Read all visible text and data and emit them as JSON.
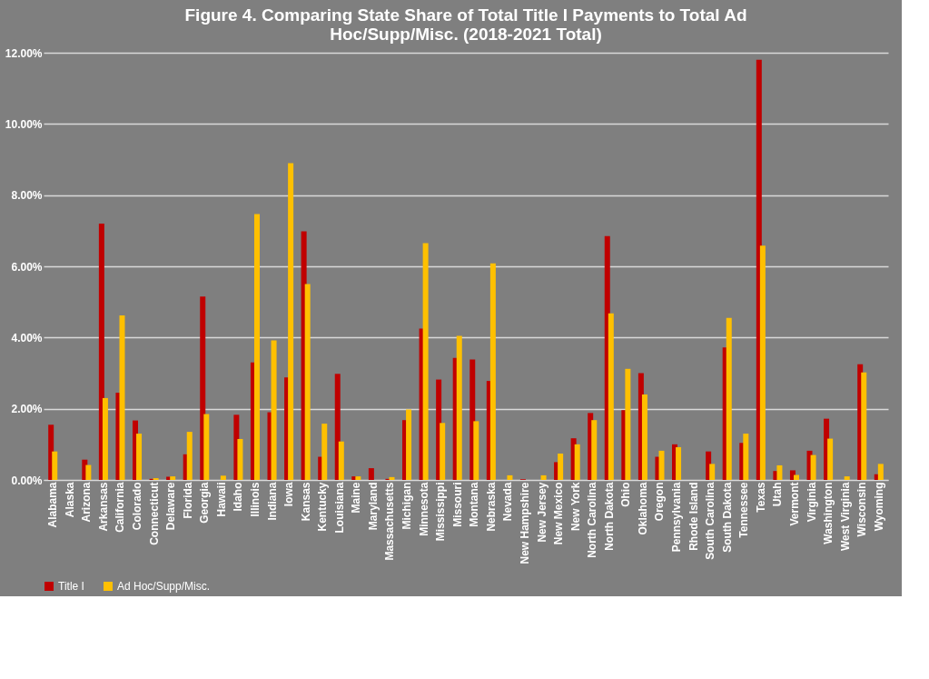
{
  "chart_data": {
    "type": "bar",
    "title": "Figure 4. Comparing State Share of Total Title I Payments to Total Ad Hoc/Supp/Misc. (2018-2021 Total)",
    "categories": [
      "Alabama",
      "Alaska",
      "Arizona",
      "Arkansas",
      "California",
      "Colorado",
      "Connecticut",
      "Delaware",
      "Florida",
      "Georgia",
      "Hawaii",
      "Idaho",
      "Illinois",
      "Indiana",
      "Iowa",
      "Kansas",
      "Kentucky",
      "Louisiana",
      "Maine",
      "Maryland",
      "Massachusetts",
      "Michigan",
      "Minnesota",
      "Mississippi",
      "Missouri",
      "Montana",
      "Nebraska",
      "Nevada",
      "New Hampshire",
      "New Jersey",
      "New Mexico",
      "New York",
      "North Carolina",
      "North Dakota",
      "Ohio",
      "Oklahoma",
      "Oregon",
      "Pennsylvania",
      "Rhode Island",
      "South Carolina",
      "South Dakota",
      "Tennessee",
      "Texas",
      "Utah",
      "Vermont",
      "Virginia",
      "Washington",
      "West Virginia",
      "Wisconsin",
      "Wyoming"
    ],
    "series": [
      {
        "name": "Title I",
        "color": "#c00000",
        "values": [
          1.55,
          0,
          0.57,
          7.2,
          2.45,
          1.67,
          0.03,
          0.09,
          0.72,
          5.15,
          0,
          1.83,
          3.3,
          1.9,
          2.88,
          6.98,
          0.65,
          2.98,
          0.1,
          0.33,
          0.03,
          1.68,
          4.25,
          2.82,
          3.43,
          3.38,
          2.78,
          null,
          0.02,
          null,
          0.5,
          1.17,
          1.88,
          6.85,
          1.96,
          3.0,
          0.65,
          1.0,
          0,
          0.8,
          3.72,
          1.04,
          11.8,
          0.25,
          0.27,
          0.82,
          1.72,
          0,
          3.25,
          0.16
        ]
      },
      {
        "name": "Ad Hoc/Supp/Misc.",
        "color": "#ffc000",
        "values": [
          0.8,
          0,
          0.42,
          2.3,
          4.62,
          1.3,
          0.05,
          0.1,
          1.35,
          1.85,
          0.12,
          1.15,
          7.47,
          3.92,
          8.9,
          5.5,
          1.58,
          1.08,
          0.1,
          0,
          0.08,
          1.98,
          6.65,
          1.6,
          4.05,
          1.65,
          6.08,
          0.13,
          0,
          0.13,
          0.74,
          1.0,
          1.68,
          4.68,
          3.12,
          2.4,
          0.82,
          0.92,
          0,
          0.45,
          4.55,
          1.3,
          6.58,
          0.41,
          0.14,
          0.7,
          1.16,
          0.1,
          3.02,
          0.45
        ]
      }
    ],
    "ylim": [
      0,
      12
    ],
    "yticks": [
      {
        "value": 0,
        "label": "0.00%"
      },
      {
        "value": 2,
        "label": "2.00%"
      },
      {
        "value": 4,
        "label": "4.00%"
      },
      {
        "value": 6,
        "label": "6.00%"
      },
      {
        "value": 8,
        "label": "8.00%"
      },
      {
        "value": 10,
        "label": "10.00%"
      },
      {
        "value": 12,
        "label": "12.00%"
      }
    ],
    "grid": "y",
    "legend": "bottom"
  }
}
